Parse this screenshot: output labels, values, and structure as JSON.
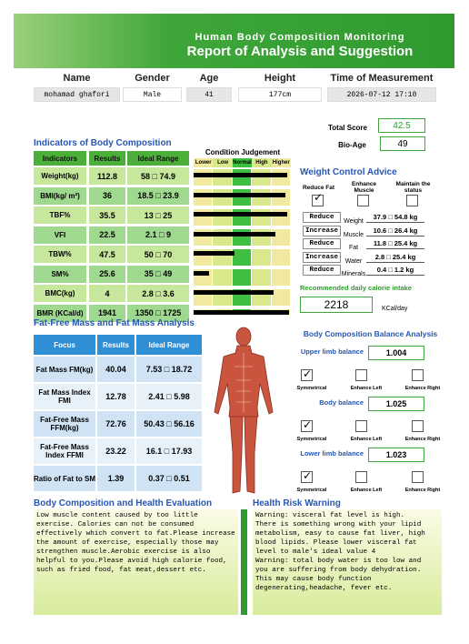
{
  "header": {
    "subtitle": "Human Body Composition Monitoring",
    "title": "Report of Analysis and Suggestion"
  },
  "info": {
    "labels": [
      "Name",
      "Gender",
      "Age",
      "Height",
      "Time of Measurement"
    ],
    "values": [
      "mohamad ghafori",
      "Male",
      "41",
      "177cm",
      "2026-07-12   17:10"
    ]
  },
  "score": {
    "total_label": "Total Score",
    "total": "42.5",
    "bioage_label": "Bio-Age",
    "bioage": "49"
  },
  "check_mark": "✓",
  "indicators": {
    "title": "Indicators of Body Composition",
    "headers": [
      "Indicators",
      "Results",
      "Ideal Range"
    ],
    "condition_title": "Condition Judgement",
    "condition_levels": [
      "Lower",
      "Low",
      "Normal",
      "High",
      "Higher"
    ],
    "judgement_scale": [
      0,
      5
    ],
    "rows": [
      {
        "name": "Weight(kg)",
        "result": "112.8",
        "range": "58 □ 74.9",
        "judgement": 4.8
      },
      {
        "name": "BMI(kg/ m²)",
        "result": "36",
        "range": "18.5 □ 23.9",
        "judgement": 4.7
      },
      {
        "name": "TBF%",
        "result": "35.5",
        "range": "13 □ 25",
        "judgement": 4.8
      },
      {
        "name": "VFI",
        "result": "22.5",
        "range": "2.1 □ 9",
        "judgement": 4.2
      },
      {
        "name": "TBW%",
        "result": "47.5",
        "range": "50 □ 70",
        "judgement": 2.1
      },
      {
        "name": "SM%",
        "result": "25.6",
        "range": "35 □ 49",
        "judgement": 0.8
      },
      {
        "name": "BMC(kg)",
        "result": "4",
        "range": "2.8 □ 3.6",
        "judgement": 4.1
      },
      {
        "name": "BMR (KCal/d)",
        "result": "1941",
        "range": "1350 □ 1725",
        "judgement": 4.9
      }
    ]
  },
  "weight_control": {
    "title": "Weight Control Advice",
    "options": [
      "Reduce Fat",
      "Enhance Muscle",
      "Maintain the status"
    ],
    "selected": 0,
    "rows": [
      {
        "action": "Reduce",
        "label": "Weight",
        "range": "37.9 □ 54.8 kg"
      },
      {
        "action": "Increase",
        "label": "Muscle",
        "range": "10.6 □ 26.4 kg"
      },
      {
        "action": "Reduce",
        "label": "Fat",
        "range": "11.8 □ 25.4 kg"
      },
      {
        "action": "Increase",
        "label": "Water",
        "range": "2.8 □ 25.4 kg"
      },
      {
        "action": "Reduce",
        "label": "Minerals",
        "range": "0.4 □ 1.2 kg"
      }
    ],
    "calorie_title": "Recommended daily calorie intake",
    "calorie": "2218",
    "calorie_unit": "KCal/day"
  },
  "fat_free": {
    "title": "Fat-Free Mass and Fat Mass Analysis",
    "headers": [
      "Focus",
      "Results",
      "Ideal Range"
    ],
    "rows": [
      [
        "Fat Mass FM(kg)",
        "40.04",
        "7.53 □ 18.72"
      ],
      [
        "Fat Mass Index FMI",
        "12.78",
        "2.41 □ 5.98"
      ],
      [
        "Fat-Free Mass FFM(kg)",
        "72.76",
        "50.43 □ 56.16"
      ],
      [
        "Fat-Free Mass Index FFMI",
        "23.22",
        "16.1 □ 17.93"
      ],
      [
        "Ratio of Fat to SM",
        "1.39",
        "0.37 □ 0.51"
      ]
    ]
  },
  "balance": {
    "title": "Body Composition Balance Analysis",
    "options": [
      "Symmetrical",
      "Enhance Left",
      "Enhance Right"
    ],
    "sections": [
      {
        "label": "Upper limb balance",
        "value": "1.004",
        "selected": 0
      },
      {
        "label": "Body balance",
        "value": "1.025",
        "selected": 0
      },
      {
        "label": "Lower limb balance",
        "value": "1.023",
        "selected": 0
      }
    ]
  },
  "evaluation": {
    "title": "Body Composition and Health Evaluation",
    "lines": [
      "Low muscle content caused by too little",
      "exercise. Calories can not be consumed",
      "effectively which convert to fat.Please increase",
      "the amount of exercise, especially those may",
      "strengthen muscle.Aerobic exercise is also",
      "helpful to you.Please avoid high calorie food,",
      "such as fried food, fat meat,dessert etc."
    ]
  },
  "risk": {
    "title": "Health Risk Warning",
    "lines": [
      "Warning: visceral fat level is high.",
      "There is something wrong with your lipid",
      "metabolism, easy to cause fat liver, high",
      "blood lipids. Please lower visceral fat",
      "level to male's ideal value 4",
      "Warning: total body water is too low and",
      "you are suffering from body dehydration.",
      "This may cause body function",
      "degenerating,headache, fever etc."
    ]
  }
}
